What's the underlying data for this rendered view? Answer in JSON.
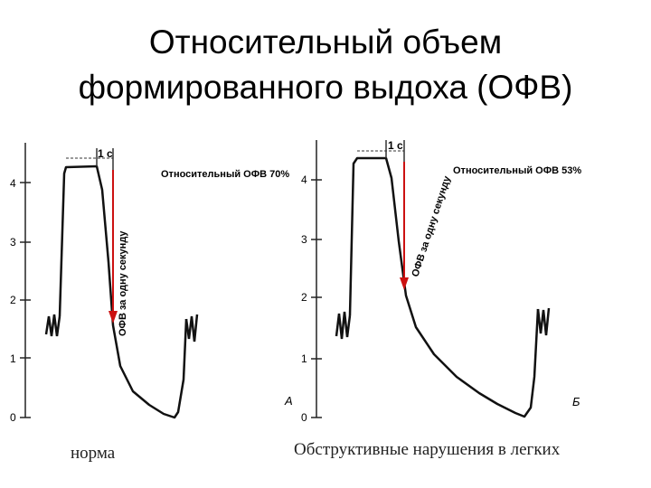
{
  "title": {
    "line1": "Относительный объем",
    "line2": "формированного выдоха (ОФВ)"
  },
  "panels": [
    {
      "letter": "А",
      "interval_label": "1 с",
      "fev_label": "Относительный ОФВ 70%",
      "vertical_label": "ОФВ за одну секунду",
      "y_ticks": [
        "0",
        "1",
        "2",
        "3",
        "4"
      ],
      "caption": "норма"
    },
    {
      "letter": "Б",
      "interval_label": "1 с",
      "fev_label": "Относительный ОФВ 53%",
      "vertical_label": "ОФВ за одну секунду",
      "y_ticks": [
        "0",
        "1",
        "2",
        "3",
        "4"
      ],
      "caption": "Обструктивные нарушения в легких"
    }
  ],
  "colors": {
    "arrow": "#cc1111",
    "curve": "#111111"
  }
}
